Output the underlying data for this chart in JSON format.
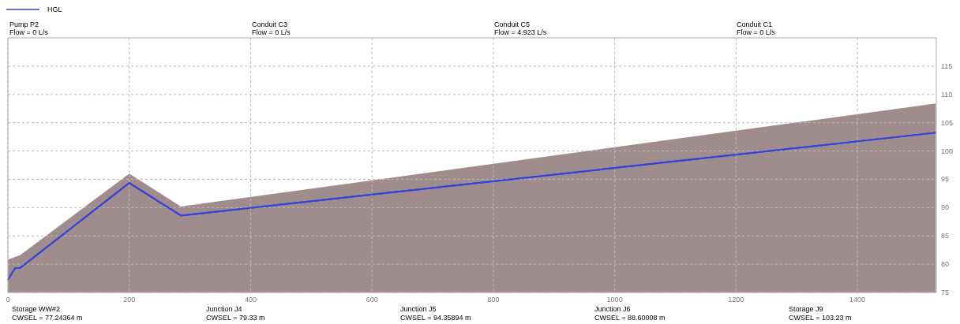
{
  "chart_data": {
    "type": "line",
    "xlim": [
      0,
      1530
    ],
    "xticks": [
      0,
      200,
      400,
      600,
      800,
      1000,
      1200,
      1400
    ],
    "ylim": [
      75,
      120
    ],
    "yticks": [
      75,
      80,
      85,
      90,
      95,
      100,
      105,
      110,
      115
    ],
    "grid": true,
    "legend": "top left",
    "line_style": "solid",
    "marker": "none",
    "series": [
      {
        "type": "area",
        "color": "#a08c8c",
        "x": [
          0,
          20,
          200,
          285,
          1529
        ],
        "values": [
          80.8,
          81.6,
          96.0,
          90.2,
          108.4
        ]
      },
      {
        "name": "HGL",
        "color": "#3344dd",
        "x": [
          0,
          12,
          20,
          200,
          285,
          1529
        ],
        "values": [
          77.24,
          79.33,
          79.33,
          94.36,
          88.6,
          103.23
        ]
      }
    ],
    "annotations": [
      "Pump P2\nFlow = 0 L/s",
      "Conduit C3\nFlow = 0 L/s",
      "Conduit C5\nFlow = 4.923 L/s",
      "Conduit C1\nFlow = 0 L/s",
      "Storage WW#2\nCWSEL = 77.24364 m",
      "Junction J4\nCWSEL = 79.33 m",
      "Junction J5\nCWSEL = 94.35894 m",
      "Junction J6\nCWSEL = 88.60008 m",
      "Storage J9\nCWSEL = 103.23 m"
    ]
  }
}
